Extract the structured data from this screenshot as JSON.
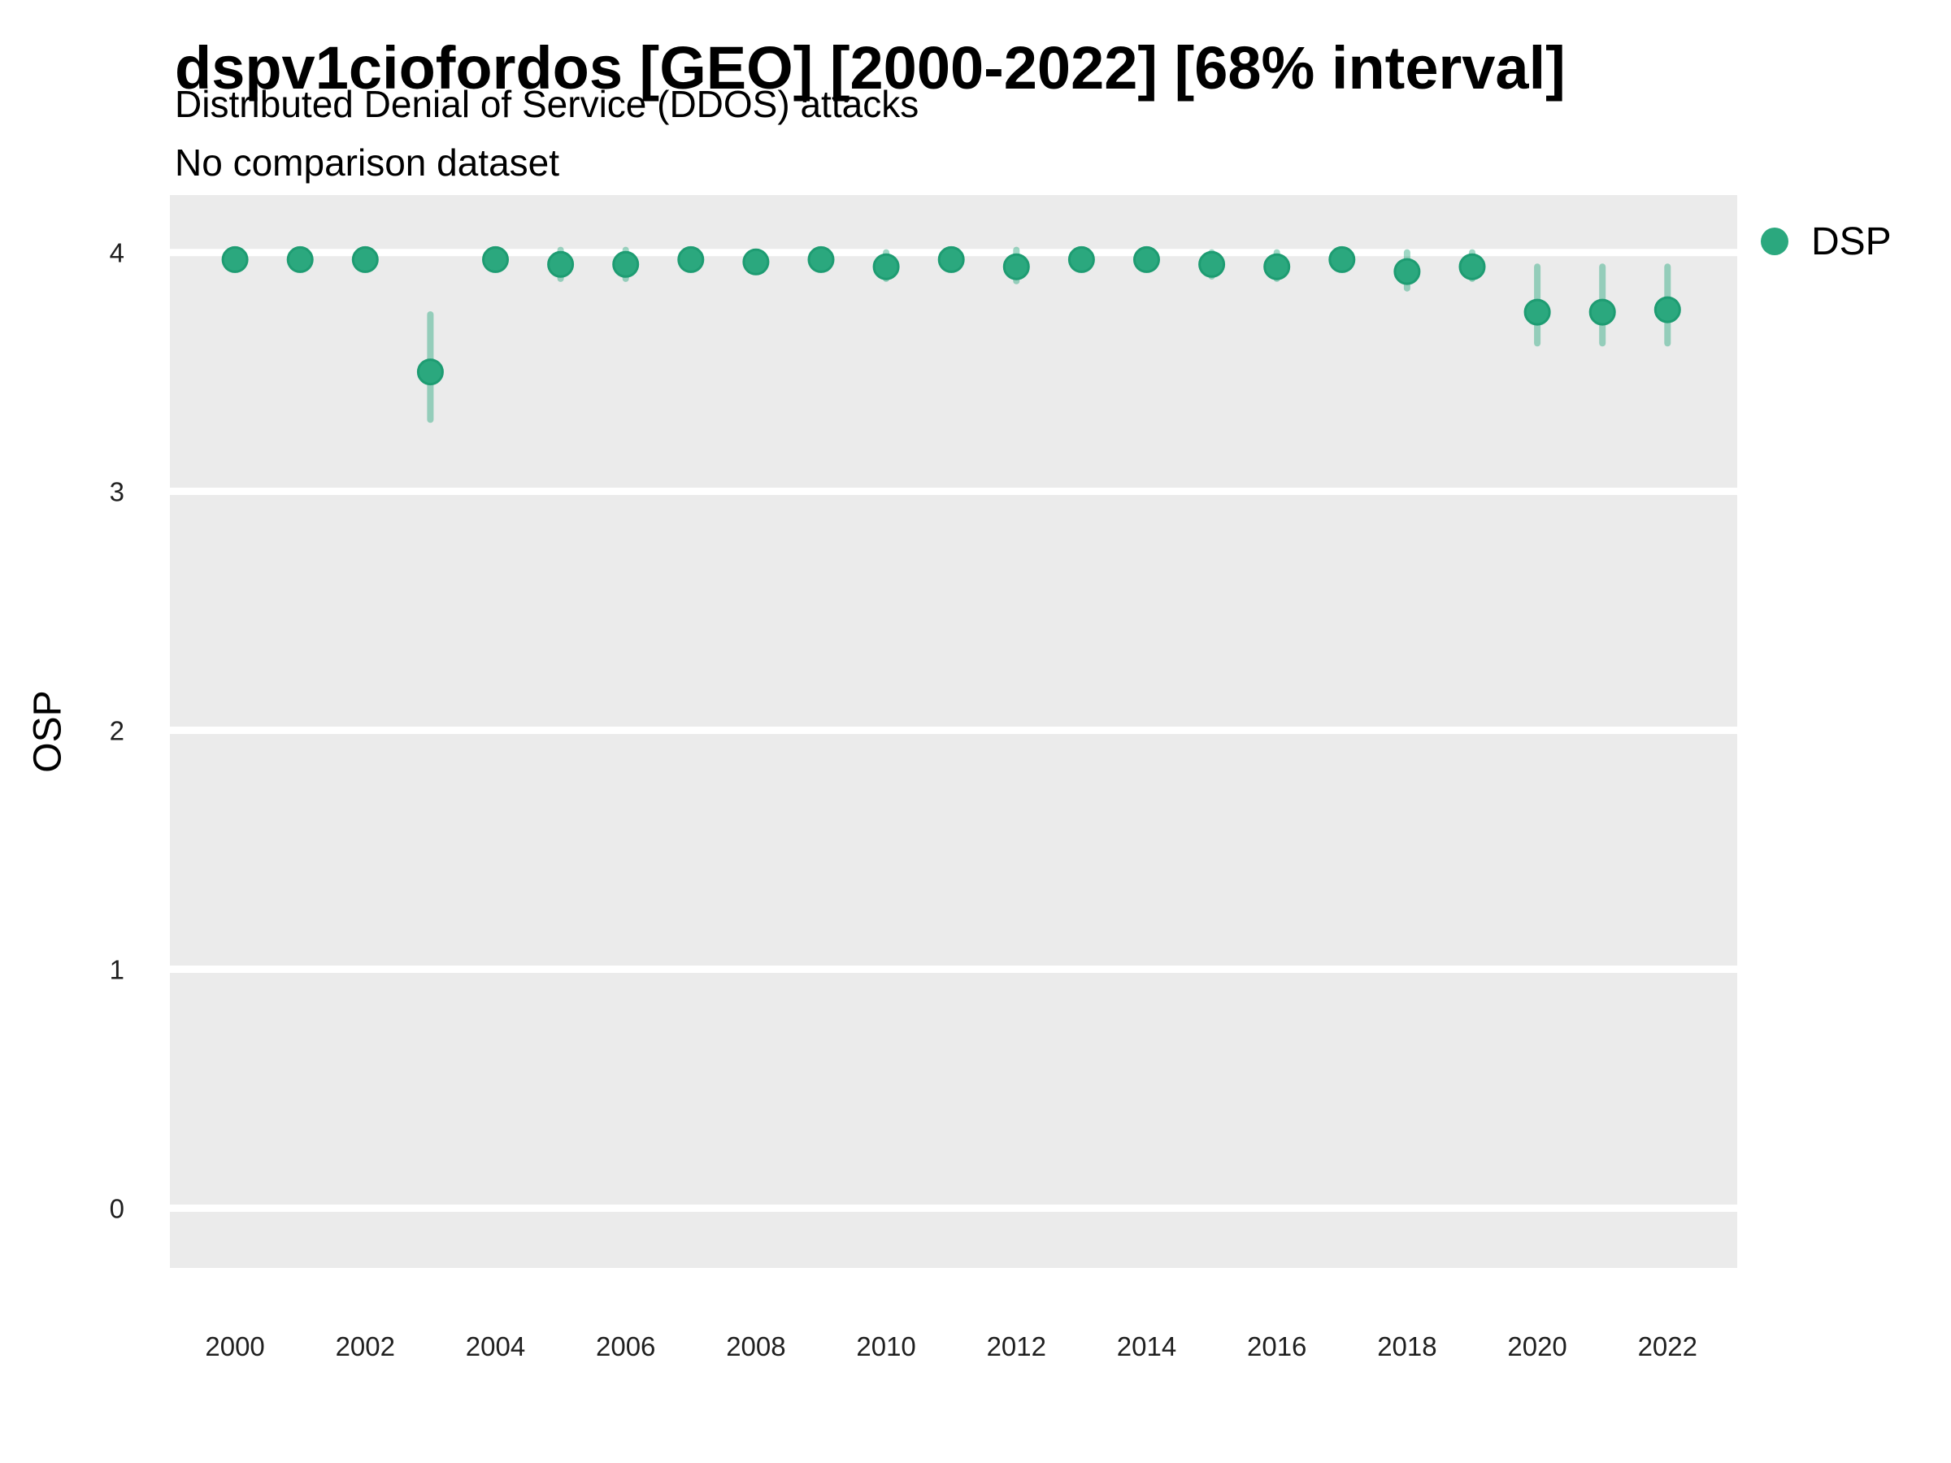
{
  "chart_data": {
    "type": "scatter",
    "title": "dspv1ciofordos [GEO] [2000-2022] [68% interval]",
    "subtitle_line1": "Distributed Denial of Service (DDOS) attacks",
    "subtitle_line2": "No comparison dataset",
    "xlabel": "",
    "ylabel": "OSP",
    "interval_level": "68%",
    "legend_position": "right",
    "grid": "horizontal-major-only",
    "xlim": [
      1999.0,
      2023.07
    ],
    "ylim": [
      -0.25,
      4.24
    ],
    "x_ticks": [
      2000,
      2002,
      2004,
      2006,
      2008,
      2010,
      2012,
      2014,
      2016,
      2018,
      2020,
      2022
    ],
    "y_ticks": [
      0,
      1,
      2,
      3,
      4
    ],
    "colors": {
      "panel_bg": "#ebebeb",
      "gridline": "#ffffff",
      "tick_text": "#1f1f1f",
      "point": "#2ba87e",
      "point_edge": "#1e9c72",
      "interval": "rgba(43,168,126,0.45)"
    },
    "series": [
      {
        "name": "DSP",
        "points": [
          {
            "year": 2000,
            "value": 3.97,
            "lo": 3.93,
            "hi": 4.01
          },
          {
            "year": 2001,
            "value": 3.97,
            "lo": 3.93,
            "hi": 4.01
          },
          {
            "year": 2002,
            "value": 3.97,
            "lo": 3.93,
            "hi": 4.01
          },
          {
            "year": 2003,
            "value": 3.5,
            "lo": 3.3,
            "hi": 3.74
          },
          {
            "year": 2004,
            "value": 3.97,
            "lo": 3.93,
            "hi": 4.01
          },
          {
            "year": 2005,
            "value": 3.95,
            "lo": 3.89,
            "hi": 4.01
          },
          {
            "year": 2006,
            "value": 3.95,
            "lo": 3.89,
            "hi": 4.01
          },
          {
            "year": 2007,
            "value": 3.97,
            "lo": 3.93,
            "hi": 4.01
          },
          {
            "year": 2008,
            "value": 3.96,
            "lo": 3.92,
            "hi": 4.0
          },
          {
            "year": 2009,
            "value": 3.97,
            "lo": 3.93,
            "hi": 4.01
          },
          {
            "year": 2010,
            "value": 3.94,
            "lo": 3.89,
            "hi": 4.0
          },
          {
            "year": 2011,
            "value": 3.97,
            "lo": 3.93,
            "hi": 4.01
          },
          {
            "year": 2012,
            "value": 3.94,
            "lo": 3.88,
            "hi": 4.01
          },
          {
            "year": 2013,
            "value": 3.97,
            "lo": 3.93,
            "hi": 4.01
          },
          {
            "year": 2014,
            "value": 3.97,
            "lo": 3.93,
            "hi": 4.01
          },
          {
            "year": 2015,
            "value": 3.95,
            "lo": 3.9,
            "hi": 4.0
          },
          {
            "year": 2016,
            "value": 3.94,
            "lo": 3.89,
            "hi": 4.0
          },
          {
            "year": 2017,
            "value": 3.97,
            "lo": 3.93,
            "hi": 4.01
          },
          {
            "year": 2018,
            "value": 3.92,
            "lo": 3.85,
            "hi": 4.0
          },
          {
            "year": 2019,
            "value": 3.94,
            "lo": 3.89,
            "hi": 4.0
          },
          {
            "year": 2020,
            "value": 3.75,
            "lo": 3.62,
            "hi": 3.94
          },
          {
            "year": 2021,
            "value": 3.75,
            "lo": 3.62,
            "hi": 3.94
          },
          {
            "year": 2022,
            "value": 3.76,
            "lo": 3.62,
            "hi": 3.94
          }
        ]
      }
    ]
  }
}
